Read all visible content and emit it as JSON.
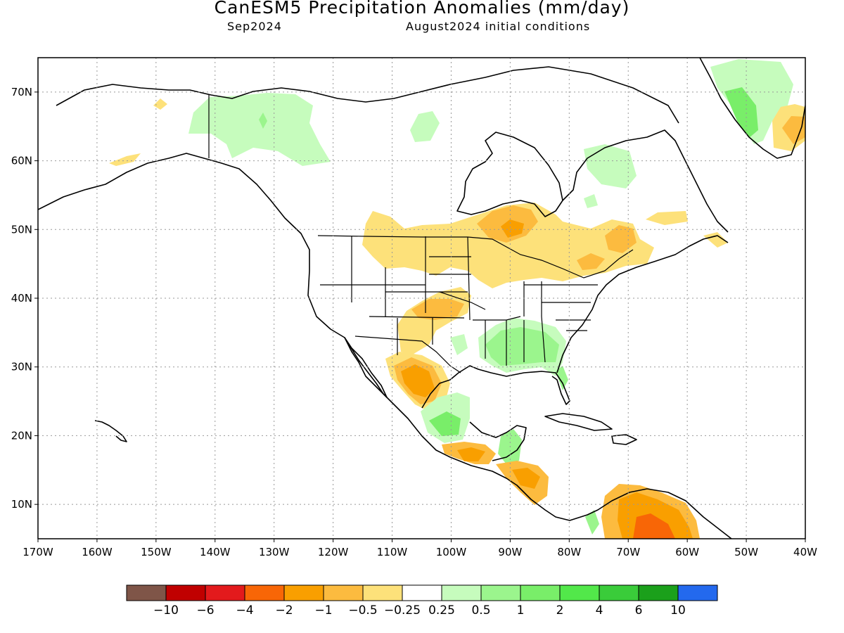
{
  "header": {
    "title": "CanESM5 Precipitation Anomalies (mm/day)",
    "month": "Sep2024",
    "init": "August2024 initial conditions"
  },
  "map": {
    "lon_range": [
      -170,
      -40
    ],
    "lat_range": [
      5,
      75
    ],
    "lon_ticks": [
      {
        "v": -170,
        "label": "170W"
      },
      {
        "v": -160,
        "label": "160W"
      },
      {
        "v": -150,
        "label": "150W"
      },
      {
        "v": -140,
        "label": "140W"
      },
      {
        "v": -130,
        "label": "130W"
      },
      {
        "v": -120,
        "label": "120W"
      },
      {
        "v": -110,
        "label": "110W"
      },
      {
        "v": -100,
        "label": "100W"
      },
      {
        "v": -90,
        "label": "90W"
      },
      {
        "v": -80,
        "label": "80W"
      },
      {
        "v": -70,
        "label": "70W"
      },
      {
        "v": -60,
        "label": "60W"
      },
      {
        "v": -50,
        "label": "50W"
      },
      {
        "v": -40,
        "label": "40W"
      }
    ],
    "lat_ticks": [
      {
        "v": 10,
        "label": "10N"
      },
      {
        "v": 20,
        "label": "20N"
      },
      {
        "v": 30,
        "label": "30N"
      },
      {
        "v": 40,
        "label": "40N"
      },
      {
        "v": 50,
        "label": "50N"
      },
      {
        "v": 60,
        "label": "60N"
      },
      {
        "v": 70,
        "label": "70N"
      }
    ],
    "grid": true
  },
  "legend": {
    "colors": [
      "#7f5548",
      "#c00000",
      "#e31a1c",
      "#f86606",
      "#f99f00",
      "#fcbb3f",
      "#fde17a",
      "#ffffff",
      "#c6fcbd",
      "#9bf58d",
      "#79ee69",
      "#52e84a",
      "#3acc3a",
      "#1ba01b",
      "#2369ee"
    ],
    "labels": [
      "−10",
      "−6",
      "−4",
      "−2",
      "−1",
      "−0.5",
      "−0.25",
      "0.25",
      "0.5",
      "1",
      "2",
      "4",
      "6",
      "10"
    ]
  }
}
